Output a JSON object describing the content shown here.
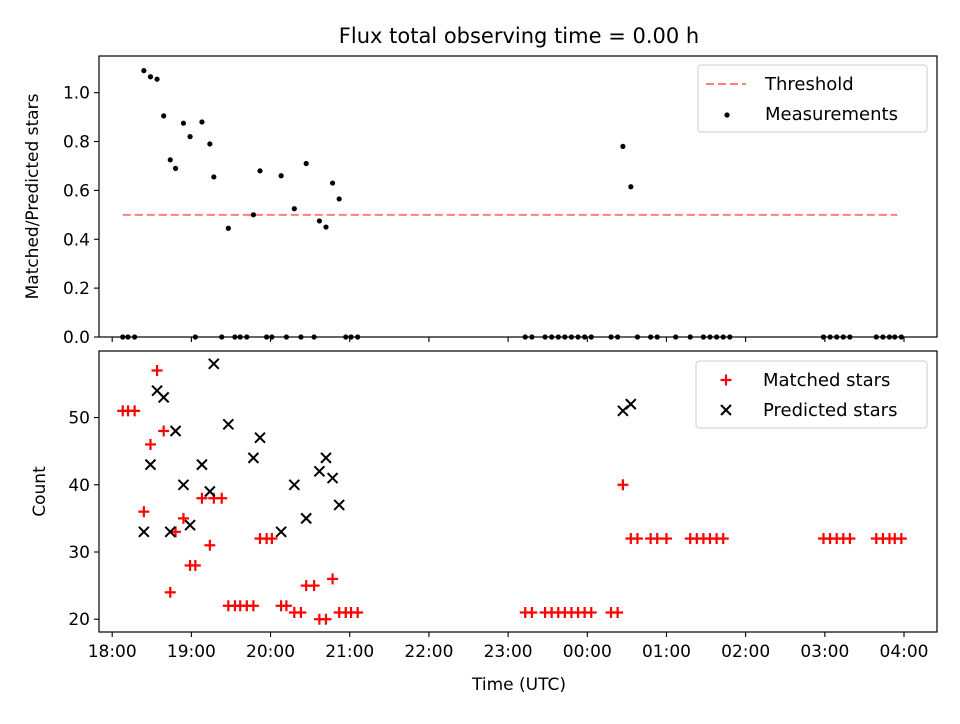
{
  "chart_data": [
    {
      "type": "scatter",
      "title": "Flux total observing time = 0.00 h",
      "xlabel": "",
      "ylabel": "Matched/Predicted stars",
      "x_unit": "time (UTC)",
      "xlim": [
        "17:50",
        "04:25"
      ],
      "ylim": [
        0,
        1.15
      ],
      "y_ticks": [
        0.0,
        0.2,
        0.4,
        0.6,
        0.8,
        1.0
      ],
      "y_tick_labels": [
        "0.0",
        "0.2",
        "0.4",
        "0.6",
        "0.8",
        "1.0"
      ],
      "legend_position": "top-right",
      "series": [
        {
          "name": "Threshold",
          "kind": "dashed-line",
          "color": "#ff7f7f",
          "points": [
            [
              "18:08",
              0.5
            ],
            [
              "03:55",
              0.5
            ]
          ]
        },
        {
          "name": "Measurements",
          "kind": "dot",
          "color": "#000000",
          "points": [
            [
              "18:08",
              0
            ],
            [
              "18:12",
              0
            ],
            [
              "18:17",
              0
            ],
            [
              "18:24",
              1.09
            ],
            [
              "18:29",
              1.065
            ],
            [
              "18:34",
              1.055
            ],
            [
              "18:39",
              0.905
            ],
            [
              "18:44",
              0.725
            ],
            [
              "18:48",
              0.69
            ],
            [
              "18:54",
              0.875
            ],
            [
              "18:59",
              0.82
            ],
            [
              "19:03",
              0
            ],
            [
              "19:08",
              0.88
            ],
            [
              "19:14",
              0.79
            ],
            [
              "19:17",
              0.655
            ],
            [
              "19:23",
              0
            ],
            [
              "19:28",
              0.445
            ],
            [
              "19:33",
              0
            ],
            [
              "19:37",
              0
            ],
            [
              "19:42",
              0
            ],
            [
              "19:47",
              0.5
            ],
            [
              "19:52",
              0.68
            ],
            [
              "19:57",
              0
            ],
            [
              "20:01",
              0
            ],
            [
              "20:08",
              0.66
            ],
            [
              "20:12",
              0
            ],
            [
              "20:18",
              0.525
            ],
            [
              "20:23",
              0
            ],
            [
              "20:27",
              0.71
            ],
            [
              "20:33",
              0
            ],
            [
              "20:37",
              0.475
            ],
            [
              "20:42",
              0.45
            ],
            [
              "20:47",
              0.63
            ],
            [
              "20:52",
              0.565
            ],
            [
              "20:57",
              0
            ],
            [
              "21:01",
              0
            ],
            [
              "21:06",
              0
            ],
            [
              "23:13",
              0
            ],
            [
              "23:18",
              0
            ],
            [
              "23:28",
              0
            ],
            [
              "23:33",
              0
            ],
            [
              "23:38",
              0
            ],
            [
              "23:43",
              0
            ],
            [
              "23:48",
              0
            ],
            [
              "23:53",
              0
            ],
            [
              "23:58",
              0
            ],
            [
              "00:03",
              0
            ],
            [
              "00:18",
              0
            ],
            [
              "00:23",
              0
            ],
            [
              "00:27",
              0.78
            ],
            [
              "00:33",
              0.615
            ],
            [
              "00:38",
              0
            ],
            [
              "00:48",
              0
            ],
            [
              "00:53",
              0
            ],
            [
              "01:07",
              0
            ],
            [
              "01:18",
              0
            ],
            [
              "01:28",
              0
            ],
            [
              "01:33",
              0
            ],
            [
              "01:38",
              0
            ],
            [
              "01:43",
              0
            ],
            [
              "01:48",
              0
            ],
            [
              "02:59",
              0
            ],
            [
              "03:04",
              0
            ],
            [
              "03:09",
              0
            ],
            [
              "03:14",
              0
            ],
            [
              "03:19",
              0
            ],
            [
              "03:39",
              0
            ],
            [
              "03:44",
              0
            ],
            [
              "03:49",
              0
            ],
            [
              "03:53",
              0
            ],
            [
              "03:58",
              0
            ]
          ]
        }
      ]
    },
    {
      "type": "scatter",
      "title": "",
      "xlabel": "Time (UTC)",
      "ylabel": "Count",
      "x_unit": "time (UTC)",
      "xlim": [
        "17:50",
        "04:25"
      ],
      "ylim": [
        18.1,
        59.9
      ],
      "y_ticks": [
        20,
        30,
        40,
        50
      ],
      "y_tick_labels": [
        "20",
        "30",
        "40",
        "50"
      ],
      "x_ticks": [
        "18:00",
        "19:00",
        "20:00",
        "21:00",
        "22:00",
        "23:00",
        "00:00",
        "01:00",
        "02:00",
        "03:00",
        "04:00"
      ],
      "x_tick_labels": [
        "18:00",
        "19:00",
        "20:00",
        "21:00",
        "22:00",
        "23:00",
        "00:00",
        "01:00",
        "02:00",
        "03:00",
        "04:00"
      ],
      "legend_position": "top-right",
      "series": [
        {
          "name": "Matched stars",
          "kind": "plus",
          "color": "#ff0000",
          "points": [
            [
              "18:08",
              51
            ],
            [
              "18:12",
              51
            ],
            [
              "18:17",
              51
            ],
            [
              "18:24",
              36
            ],
            [
              "18:29",
              46
            ],
            [
              "18:34",
              57
            ],
            [
              "18:39",
              48
            ],
            [
              "18:44",
              24
            ],
            [
              "18:48",
              33
            ],
            [
              "18:54",
              35
            ],
            [
              "18:59",
              28
            ],
            [
              "19:03",
              28
            ],
            [
              "19:08",
              38
            ],
            [
              "19:14",
              31
            ],
            [
              "19:17",
              38
            ],
            [
              "19:23",
              38
            ],
            [
              "19:28",
              22
            ],
            [
              "19:33",
              22
            ],
            [
              "19:37",
              22
            ],
            [
              "19:42",
              22
            ],
            [
              "19:47",
              22
            ],
            [
              "19:52",
              32
            ],
            [
              "19:57",
              32
            ],
            [
              "20:01",
              32
            ],
            [
              "20:08",
              22
            ],
            [
              "20:12",
              22
            ],
            [
              "20:18",
              21
            ],
            [
              "20:23",
              21
            ],
            [
              "20:27",
              25
            ],
            [
              "20:33",
              25
            ],
            [
              "20:37",
              20
            ],
            [
              "20:42",
              20
            ],
            [
              "20:47",
              26
            ],
            [
              "20:52",
              21
            ],
            [
              "20:57",
              21
            ],
            [
              "21:01",
              21
            ],
            [
              "21:06",
              21
            ],
            [
              "23:13",
              21
            ],
            [
              "23:18",
              21
            ],
            [
              "23:28",
              21
            ],
            [
              "23:33",
              21
            ],
            [
              "23:38",
              21
            ],
            [
              "23:43",
              21
            ],
            [
              "23:48",
              21
            ],
            [
              "23:53",
              21
            ],
            [
              "23:58",
              21
            ],
            [
              "00:03",
              21
            ],
            [
              "00:18",
              21
            ],
            [
              "00:23",
              21
            ],
            [
              "00:27",
              40
            ],
            [
              "00:33",
              32
            ],
            [
              "00:38",
              32
            ],
            [
              "00:48",
              32
            ],
            [
              "00:53",
              32
            ],
            [
              "01:00",
              32
            ],
            [
              "01:18",
              32
            ],
            [
              "01:23",
              32
            ],
            [
              "01:28",
              32
            ],
            [
              "01:33",
              32
            ],
            [
              "01:38",
              32
            ],
            [
              "01:43",
              32
            ],
            [
              "02:59",
              32
            ],
            [
              "03:04",
              32
            ],
            [
              "03:09",
              32
            ],
            [
              "03:14",
              32
            ],
            [
              "03:19",
              32
            ],
            [
              "03:39",
              32
            ],
            [
              "03:44",
              32
            ],
            [
              "03:49",
              32
            ],
            [
              "03:53",
              32
            ],
            [
              "03:58",
              32
            ]
          ]
        },
        {
          "name": "Predicted stars",
          "kind": "x",
          "color": "#000000",
          "points": [
            [
              "18:24",
              33
            ],
            [
              "18:29",
              43
            ],
            [
              "18:34",
              54
            ],
            [
              "18:39",
              53
            ],
            [
              "18:44",
              33
            ],
            [
              "18:48",
              48
            ],
            [
              "18:54",
              40
            ],
            [
              "18:59",
              34
            ],
            [
              "19:08",
              43
            ],
            [
              "19:14",
              39
            ],
            [
              "19:17",
              58
            ],
            [
              "19:28",
              49
            ],
            [
              "19:47",
              44
            ],
            [
              "19:52",
              47
            ],
            [
              "20:08",
              33
            ],
            [
              "20:18",
              40
            ],
            [
              "20:27",
              35
            ],
            [
              "20:37",
              42
            ],
            [
              "20:42",
              44
            ],
            [
              "20:47",
              41
            ],
            [
              "20:52",
              37
            ],
            [
              "00:27",
              51
            ],
            [
              "00:33",
              52
            ]
          ]
        }
      ]
    }
  ]
}
